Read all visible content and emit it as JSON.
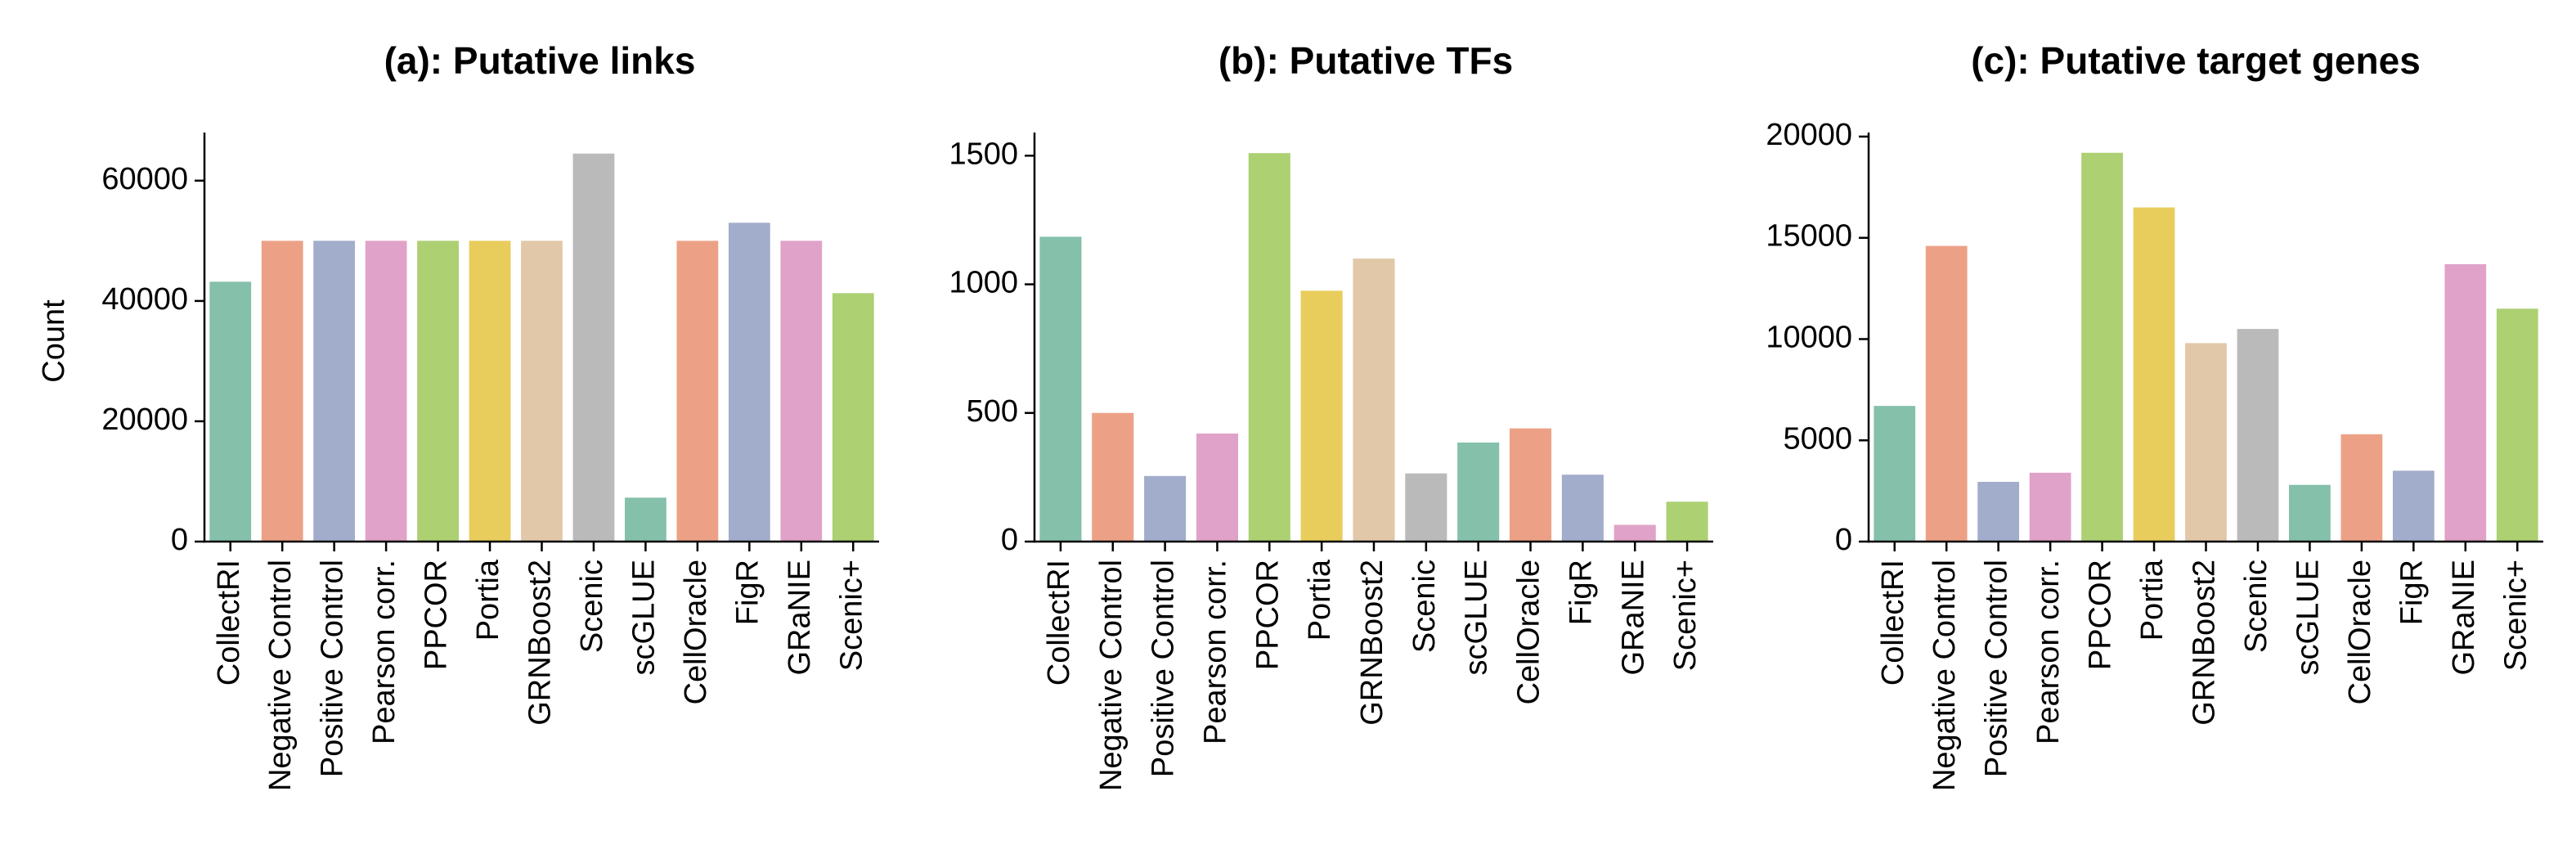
{
  "chart_data": [
    {
      "type": "bar",
      "title": "(a): Putative links",
      "xlabel": "",
      "ylabel": "Count",
      "ylim": [
        0,
        68000
      ],
      "yticks": [
        0,
        20000,
        40000,
        60000
      ],
      "grid": false,
      "categories": [
        "CollectRI",
        "Negative Control",
        "Positive Control",
        "Pearson corr.",
        "PPCOR",
        "Portia",
        "GRNBoost2",
        "Scenic",
        "scGLUE",
        "CellOracle",
        "FigR",
        "GRaNIE",
        "Scenic+"
      ],
      "values": [
        43200,
        50000,
        50000,
        50000,
        50000,
        50000,
        50000,
        64500,
        7300,
        50000,
        53000,
        50000,
        41300
      ],
      "colors": [
        "#84c0aa",
        "#eca186",
        "#a2adcb",
        "#e0a2c8",
        "#acd072",
        "#e8cd5c",
        "#e1c8a8",
        "#bababa",
        "#84c0aa",
        "#eca186",
        "#a2adcb",
        "#e0a2c8",
        "#acd072"
      ]
    },
    {
      "type": "bar",
      "title": "(b): Putative TFs",
      "xlabel": "",
      "ylabel": "",
      "ylim": [
        0,
        1590
      ],
      "yticks": [
        0,
        500,
        1000,
        1500
      ],
      "grid": false,
      "categories": [
        "CollectRI",
        "Negative Control",
        "Positive Control",
        "Pearson corr.",
        "PPCOR",
        "Portia",
        "GRNBoost2",
        "Scenic",
        "scGLUE",
        "CellOracle",
        "FigR",
        "GRaNIE",
        "Scenic+"
      ],
      "values": [
        1185,
        500,
        255,
        420,
        1510,
        975,
        1100,
        265,
        385,
        440,
        260,
        65,
        155
      ],
      "colors": [
        "#84c0aa",
        "#eca186",
        "#a2adcb",
        "#e0a2c8",
        "#acd072",
        "#e8cd5c",
        "#e1c8a8",
        "#bababa",
        "#84c0aa",
        "#eca186",
        "#a2adcb",
        "#e0a2c8",
        "#acd072"
      ]
    },
    {
      "type": "bar",
      "title": "(c): Putative target genes",
      "xlabel": "",
      "ylabel": "",
      "ylim": [
        0,
        20200
      ],
      "yticks": [
        0,
        5000,
        10000,
        15000,
        20000
      ],
      "grid": false,
      "categories": [
        "CollectRI",
        "Negative Control",
        "Positive Control",
        "Pearson corr.",
        "PPCOR",
        "Portia",
        "GRNBoost2",
        "Scenic",
        "scGLUE",
        "CellOracle",
        "FigR",
        "GRaNIE",
        "Scenic+"
      ],
      "values": [
        6700,
        14600,
        2950,
        3400,
        19200,
        16500,
        9800,
        10500,
        2800,
        5300,
        3500,
        13700,
        11500
      ],
      "colors": [
        "#84c0aa",
        "#eca186",
        "#a2adcb",
        "#e0a2c8",
        "#acd072",
        "#e8cd5c",
        "#e1c8a8",
        "#bababa",
        "#84c0aa",
        "#eca186",
        "#a2adcb",
        "#e0a2c8",
        "#acd072"
      ]
    }
  ]
}
